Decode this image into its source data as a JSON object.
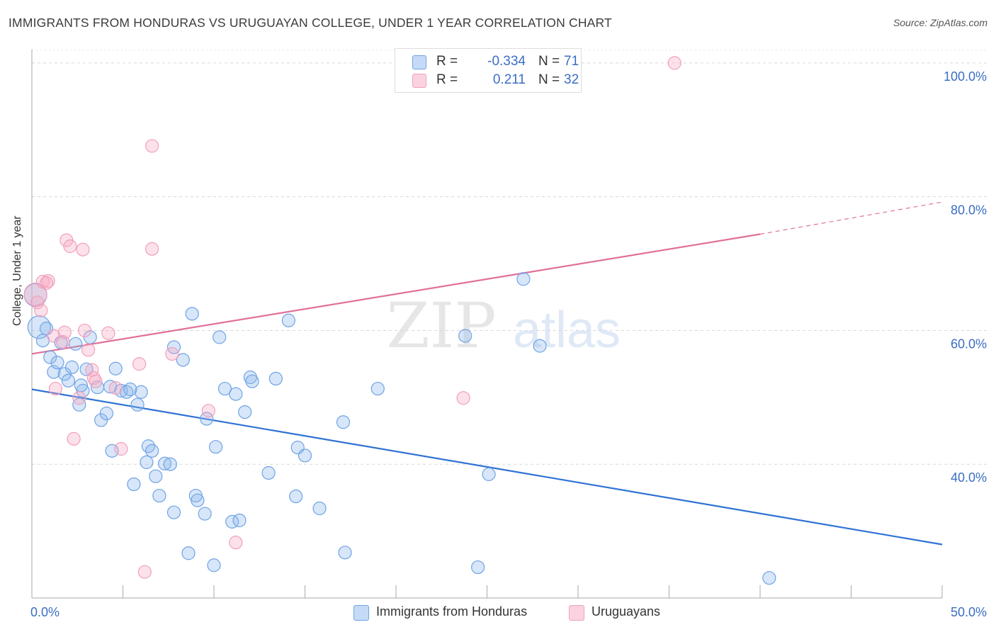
{
  "header": {
    "title": "IMMIGRANTS FROM HONDURAS VS URUGUAYAN COLLEGE, UNDER 1 YEAR CORRELATION CHART",
    "source": "Source: ZipAtlas.com"
  },
  "watermark": {
    "zip": "ZIP",
    "atlas": "atlas"
  },
  "stats": [
    {
      "r_label": "R =",
      "r_value": "-0.334",
      "n_label": "N =",
      "n_value": "71",
      "color": "#6fa3e6"
    },
    {
      "r_label": "R =",
      "r_value": "0.211",
      "n_label": "N =",
      "n_value": "32",
      "color": "#f0a0bc"
    }
  ],
  "legend": {
    "series1": "Immigrants from Honduras",
    "series2": "Uruguayans"
  },
  "chart_data": {
    "type": "scatter",
    "title": "IMMIGRANTS FROM HONDURAS VS URUGUAYAN COLLEGE, UNDER 1 YEAR CORRELATION CHART",
    "xlabel": "",
    "ylabel": "College, Under 1 year",
    "xlim": [
      0,
      50
    ],
    "ylim": [
      20,
      102
    ],
    "x_tick_labels": [
      {
        "value": 0,
        "label": "0.0%"
      },
      {
        "value": 50,
        "label": "50.0%"
      }
    ],
    "y_tick_labels": [
      {
        "value": 40,
        "label": "40.0%"
      },
      {
        "value": 60,
        "label": "60.0%"
      },
      {
        "value": 80,
        "label": "80.0%"
      },
      {
        "value": 100,
        "label": "100.0%"
      }
    ],
    "x_minor_ticks": [
      5,
      10,
      15,
      20,
      25,
      30,
      35,
      40,
      45
    ],
    "grid": true,
    "legend_position": "bottom-center",
    "series": [
      {
        "name": "Immigrants from Honduras",
        "color": "#6fa3e6",
        "trend_color": "#2f72d4",
        "trend": {
          "x": [
            0,
            50
          ],
          "y": [
            51.2,
            28.0
          ]
        },
        "points": [
          {
            "x": 0.2,
            "y": 65.3,
            "big": true
          },
          {
            "x": 0.4,
            "y": 60.5,
            "big": true
          },
          {
            "x": 0.6,
            "y": 58.5
          },
          {
            "x": 0.8,
            "y": 60.3
          },
          {
            "x": 1.0,
            "y": 56.0
          },
          {
            "x": 1.2,
            "y": 53.8
          },
          {
            "x": 1.4,
            "y": 55.2
          },
          {
            "x": 1.6,
            "y": 58.2
          },
          {
            "x": 1.8,
            "y": 53.5
          },
          {
            "x": 2.0,
            "y": 52.5
          },
          {
            "x": 2.2,
            "y": 54.5
          },
          {
            "x": 2.4,
            "y": 58.0
          },
          {
            "x": 2.6,
            "y": 48.9
          },
          {
            "x": 2.8,
            "y": 51.0
          },
          {
            "x": 3.0,
            "y": 54.2
          },
          {
            "x": 3.2,
            "y": 59.0
          },
          {
            "x": 3.6,
            "y": 51.5
          },
          {
            "x": 3.8,
            "y": 46.6
          },
          {
            "x": 4.1,
            "y": 47.6
          },
          {
            "x": 4.4,
            "y": 42.0
          },
          {
            "x": 4.6,
            "y": 54.3
          },
          {
            "x": 4.9,
            "y": 51.0
          },
          {
            "x": 5.2,
            "y": 50.8
          },
          {
            "x": 5.6,
            "y": 37.0
          },
          {
            "x": 5.8,
            "y": 48.9
          },
          {
            "x": 6.0,
            "y": 50.8
          },
          {
            "x": 6.3,
            "y": 40.3
          },
          {
            "x": 6.4,
            "y": 42.7
          },
          {
            "x": 6.6,
            "y": 42.0
          },
          {
            "x": 6.8,
            "y": 38.2
          },
          {
            "x": 7.0,
            "y": 35.3
          },
          {
            "x": 7.3,
            "y": 40.1
          },
          {
            "x": 7.6,
            "y": 40.0
          },
          {
            "x": 7.8,
            "y": 32.8
          },
          {
            "x": 7.8,
            "y": 57.5
          },
          {
            "x": 8.3,
            "y": 55.6
          },
          {
            "x": 8.6,
            "y": 26.7
          },
          {
            "x": 8.8,
            "y": 62.5
          },
          {
            "x": 9.0,
            "y": 35.3
          },
          {
            "x": 9.1,
            "y": 34.6
          },
          {
            "x": 9.5,
            "y": 32.6
          },
          {
            "x": 9.6,
            "y": 46.8
          },
          {
            "x": 10.0,
            "y": 24.9
          },
          {
            "x": 10.1,
            "y": 42.6
          },
          {
            "x": 10.3,
            "y": 59.0
          },
          {
            "x": 10.6,
            "y": 51.3
          },
          {
            "x": 11.0,
            "y": 31.4
          },
          {
            "x": 11.2,
            "y": 50.5
          },
          {
            "x": 11.4,
            "y": 31.6
          },
          {
            "x": 11.7,
            "y": 47.8
          },
          {
            "x": 12.0,
            "y": 53.0
          },
          {
            "x": 12.1,
            "y": 52.4
          },
          {
            "x": 13.0,
            "y": 38.7
          },
          {
            "x": 13.4,
            "y": 52.8
          },
          {
            "x": 14.1,
            "y": 61.5
          },
          {
            "x": 14.5,
            "y": 35.2
          },
          {
            "x": 14.6,
            "y": 42.5
          },
          {
            "x": 15.0,
            "y": 41.3
          },
          {
            "x": 15.8,
            "y": 33.4
          },
          {
            "x": 17.1,
            "y": 46.3
          },
          {
            "x": 17.2,
            "y": 26.8
          },
          {
            "x": 19.0,
            "y": 51.3
          },
          {
            "x": 23.8,
            "y": 59.2
          },
          {
            "x": 24.5,
            "y": 24.6
          },
          {
            "x": 25.1,
            "y": 38.5
          },
          {
            "x": 27.0,
            "y": 67.7
          },
          {
            "x": 27.9,
            "y": 57.7
          },
          {
            "x": 40.5,
            "y": 23.0
          },
          {
            "x": 2.7,
            "y": 51.8
          },
          {
            "x": 4.3,
            "y": 51.6
          },
          {
            "x": 5.4,
            "y": 51.2
          }
        ]
      },
      {
        "name": "Uruguayans",
        "color": "#f0a0bc",
        "trend_color": "#e0709a",
        "trend": {
          "x": [
            0,
            40
          ],
          "y": [
            56.5,
            74.4
          ]
        },
        "trend_dashed": {
          "x": [
            40,
            50
          ],
          "y": [
            74.4,
            79.2
          ]
        },
        "points": [
          {
            "x": 0.2,
            "y": 65.4,
            "big": true
          },
          {
            "x": 0.3,
            "y": 64.2
          },
          {
            "x": 0.5,
            "y": 63.0
          },
          {
            "x": 0.6,
            "y": 67.3
          },
          {
            "x": 0.9,
            "y": 67.4
          },
          {
            "x": 0.8,
            "y": 67.1
          },
          {
            "x": 1.2,
            "y": 59.2
          },
          {
            "x": 1.3,
            "y": 51.3
          },
          {
            "x": 1.7,
            "y": 58.3
          },
          {
            "x": 1.8,
            "y": 59.7
          },
          {
            "x": 1.9,
            "y": 73.5
          },
          {
            "x": 2.1,
            "y": 72.6
          },
          {
            "x": 2.3,
            "y": 43.8
          },
          {
            "x": 2.6,
            "y": 49.9
          },
          {
            "x": 2.8,
            "y": 72.1
          },
          {
            "x": 2.9,
            "y": 60.0
          },
          {
            "x": 3.1,
            "y": 57.1
          },
          {
            "x": 3.3,
            "y": 54.1
          },
          {
            "x": 3.4,
            "y": 52.9
          },
          {
            "x": 3.5,
            "y": 52.4
          },
          {
            "x": 4.2,
            "y": 59.6
          },
          {
            "x": 4.6,
            "y": 51.4
          },
          {
            "x": 4.9,
            "y": 42.3
          },
          {
            "x": 5.9,
            "y": 55.0
          },
          {
            "x": 6.2,
            "y": 23.9
          },
          {
            "x": 6.6,
            "y": 87.6
          },
          {
            "x": 6.6,
            "y": 72.2
          },
          {
            "x": 7.7,
            "y": 56.5
          },
          {
            "x": 9.7,
            "y": 48.0
          },
          {
            "x": 11.2,
            "y": 28.3
          },
          {
            "x": 23.7,
            "y": 49.9
          },
          {
            "x": 35.3,
            "y": 100.0
          }
        ]
      }
    ]
  }
}
